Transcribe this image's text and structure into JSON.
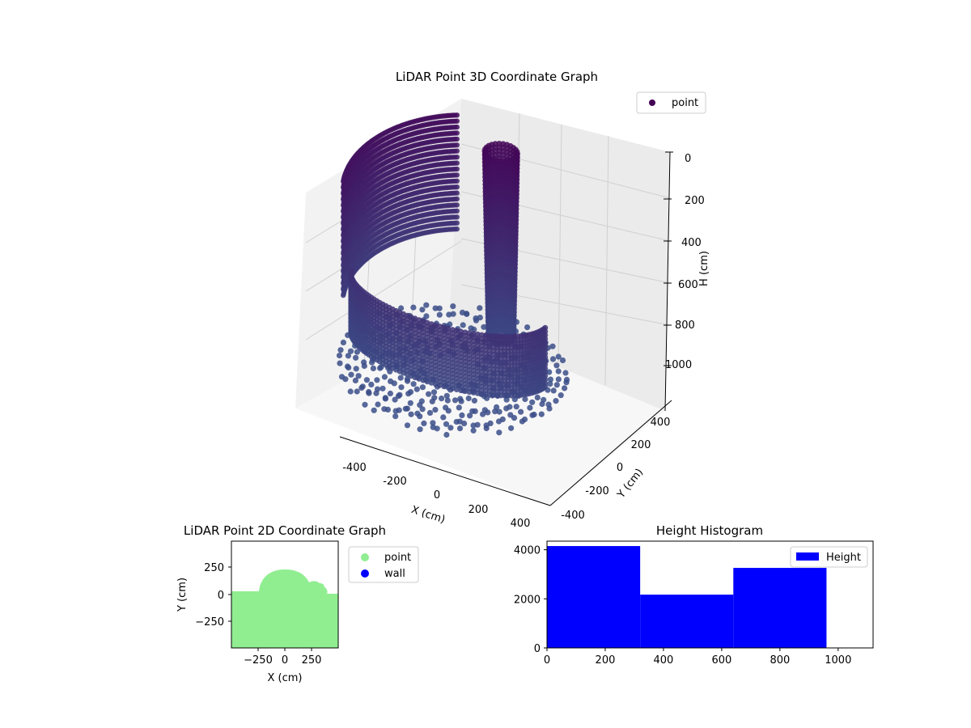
{
  "chart_data": [
    {
      "id": "scatter3d",
      "type": "scatter",
      "title": "LiDAR Point 3D Coordinate Graph",
      "xlabel": "X (cm)",
      "ylabel": "Y (cm)",
      "zlabel": "H (cm)",
      "xlim": [
        -500,
        500
      ],
      "ylim": [
        -500,
        500
      ],
      "zlim": [
        1000,
        0
      ],
      "x_ticks": [
        "-400",
        "-200",
        "0",
        "200",
        "400"
      ],
      "y_ticks": [
        "-400",
        "-200",
        "0",
        "200",
        "400"
      ],
      "z_ticks": [
        "0",
        "200",
        "400",
        "600",
        "800",
        "1000"
      ],
      "legend": [
        "point"
      ],
      "legend_position": "top-right",
      "colors": {
        "low": "#3b528b",
        "high": "#440154",
        "legend_marker": "#440154"
      },
      "grid": true
    },
    {
      "id": "scatter2d",
      "type": "scatter",
      "title": "LiDAR Point 2D Coordinate Graph",
      "xlabel": "X (cm)",
      "ylabel": "Y (cm)",
      "xlim": [
        -500,
        500
      ],
      "ylim": [
        -500,
        500
      ],
      "x_ticks": [
        "−250",
        "0",
        "250"
      ],
      "y_ticks": [
        "250",
        "0",
        "−250"
      ],
      "legend": [
        "point",
        "wall"
      ],
      "legend_position": "outside-right",
      "colors": {
        "point": "#90ee90",
        "wall": "#0000ff"
      }
    },
    {
      "id": "histogram",
      "type": "bar",
      "title": "Height Histogram",
      "legend": [
        "Height"
      ],
      "legend_position": "top-right",
      "bins": [
        {
          "from": 0,
          "to": 320,
          "count": 4150
        },
        {
          "from": 320,
          "to": 640,
          "count": 2170
        },
        {
          "from": 640,
          "to": 960,
          "count": 3260
        }
      ],
      "xlim": [
        0,
        1120
      ],
      "ylim": [
        0,
        4350
      ],
      "x_ticks": [
        "0",
        "200",
        "400",
        "600",
        "800",
        "1000"
      ],
      "y_ticks": [
        "0",
        "2000",
        "4000"
      ],
      "colors": {
        "bar": "#0000ff"
      }
    }
  ]
}
